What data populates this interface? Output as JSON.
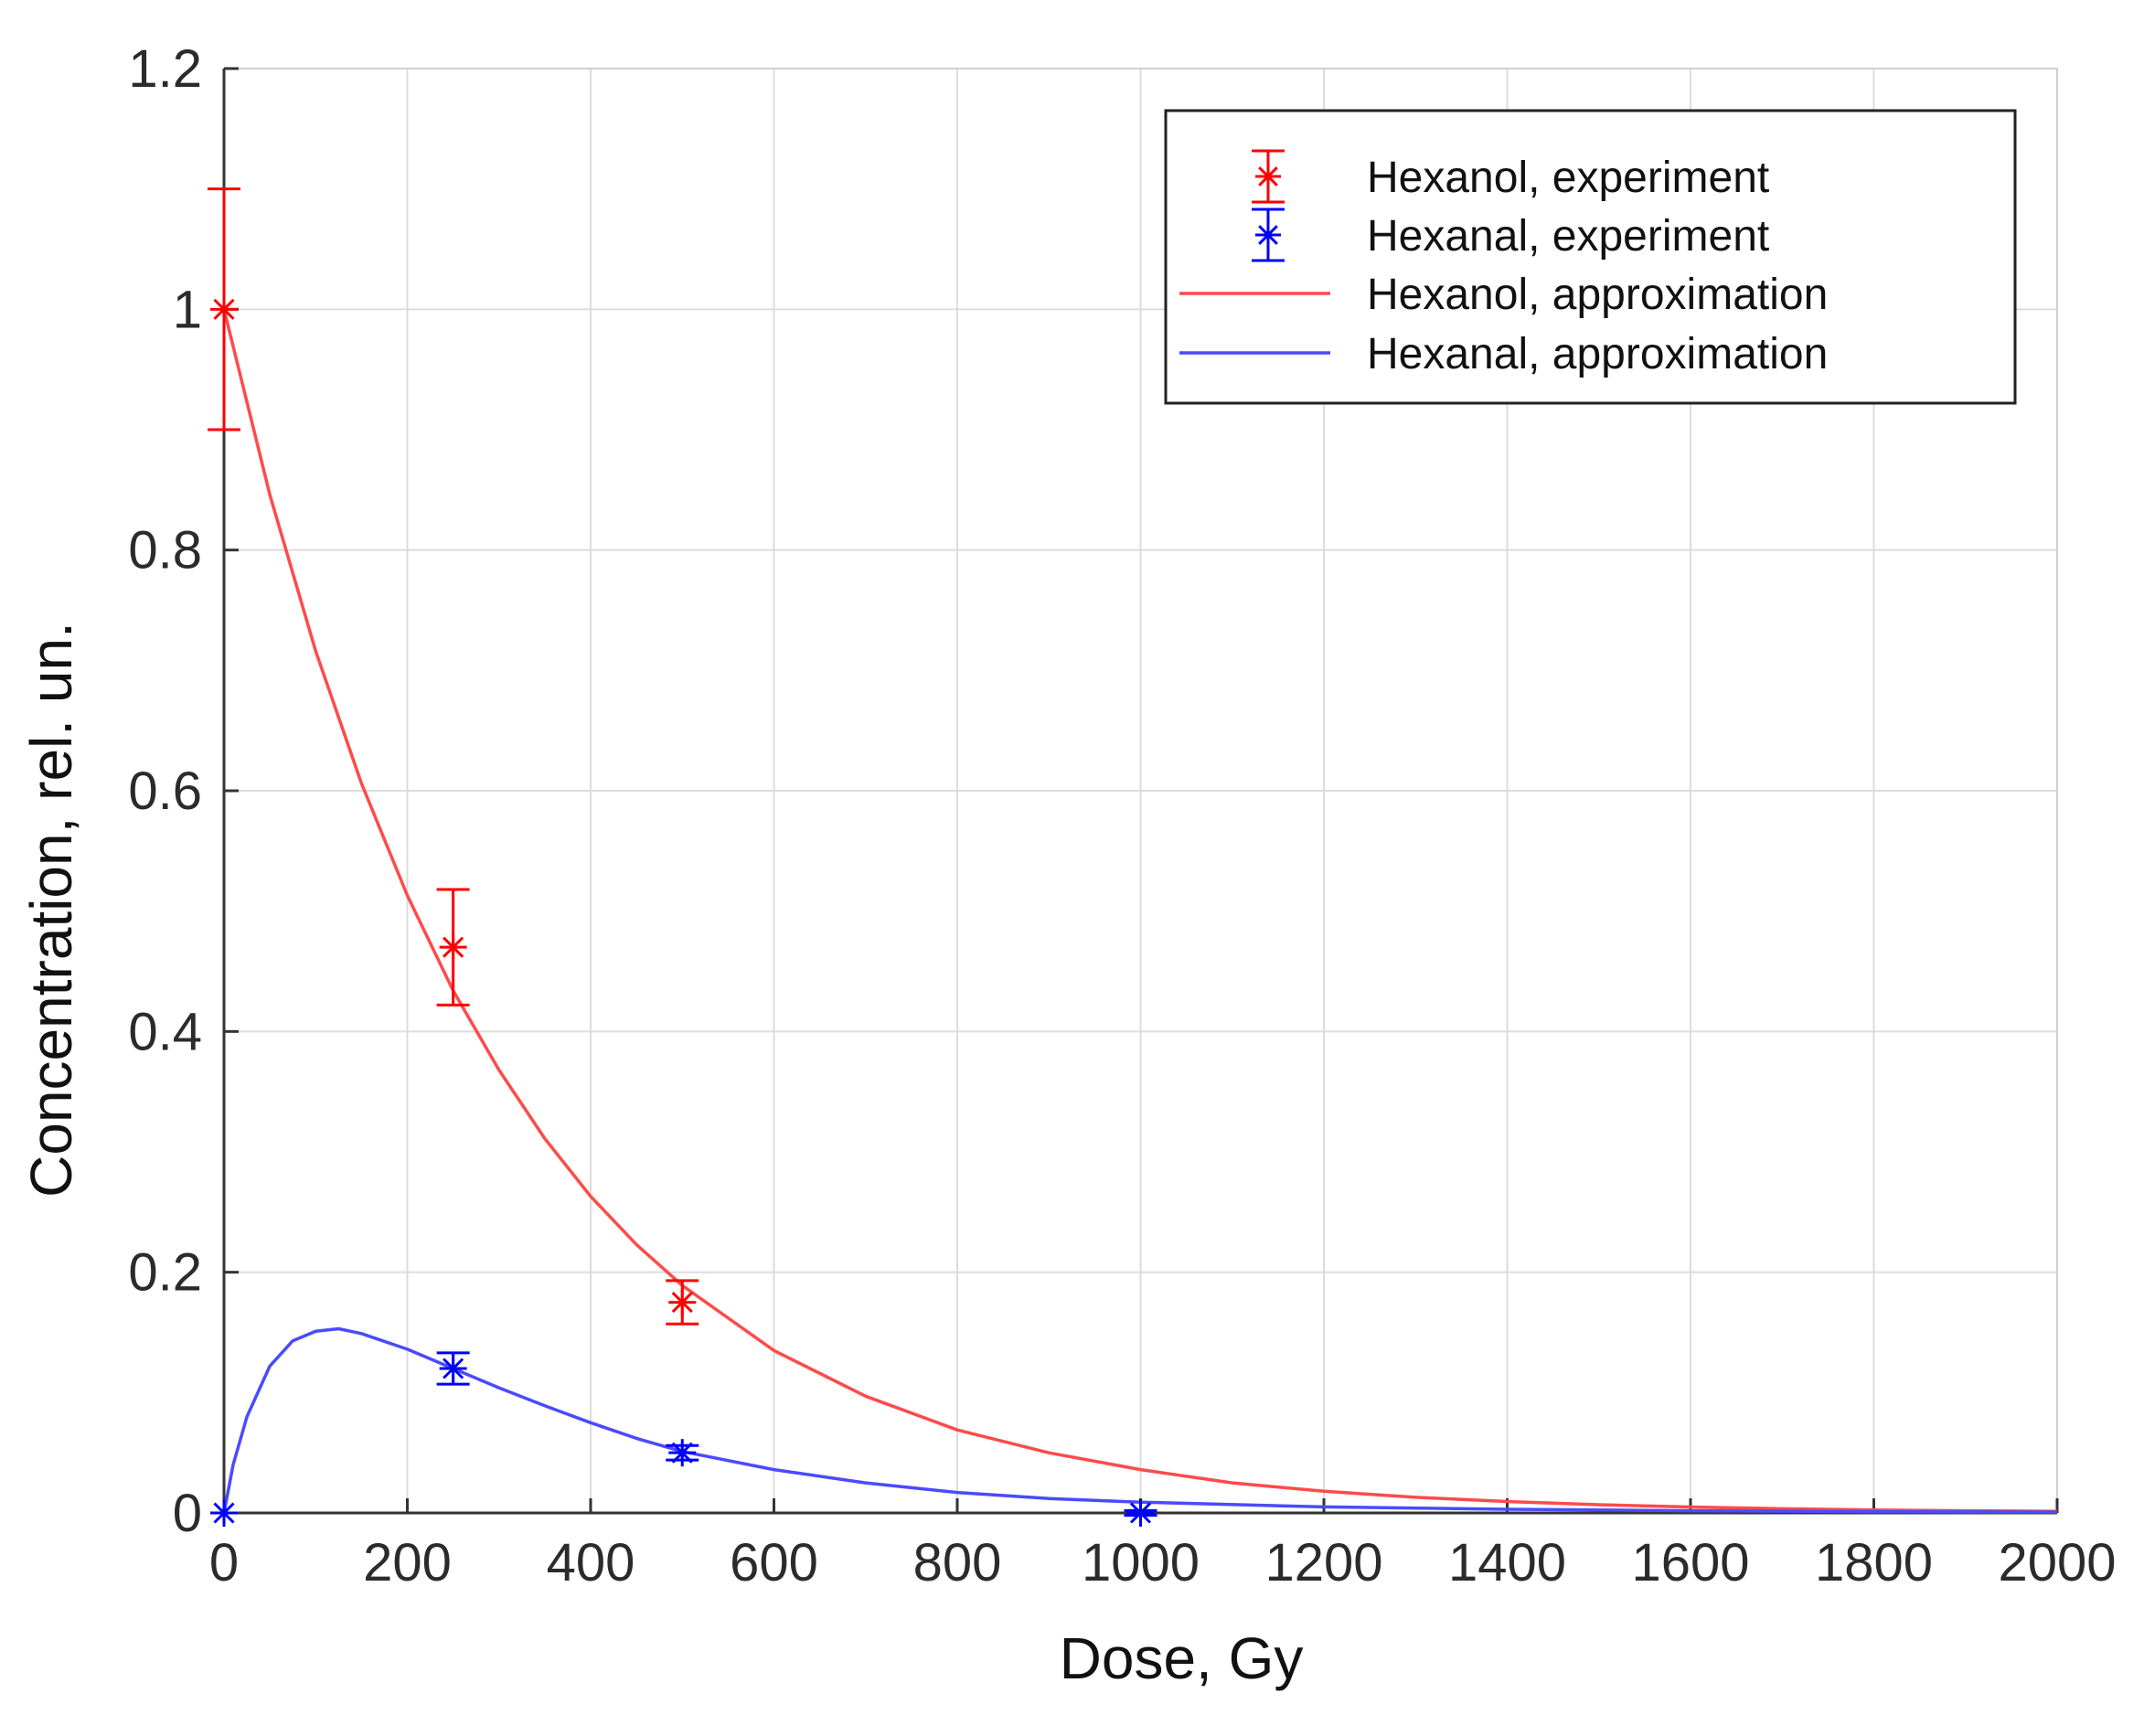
{
  "chart_data": {
    "type": "line",
    "title": "",
    "xlabel": "Dose, Gy",
    "ylabel": "Concentration, rel. un.",
    "xlim": [
      0,
      2000
    ],
    "ylim": [
      0,
      1.2
    ],
    "grid": true,
    "legend_position": "top-right",
    "x_ticks": [
      "0",
      "200",
      "400",
      "600",
      "800",
      "1000",
      "1200",
      "1400",
      "1600",
      "1800",
      "2000"
    ],
    "y_ticks": [
      "0",
      "0.2",
      "0.4",
      "0.6",
      "0.8",
      "1",
      "1.2"
    ],
    "series": [
      {
        "name": "Hexanol, experiment",
        "kind": "errorbar",
        "color": "#ff0000",
        "x": [
          0,
          250,
          500
        ],
        "y": [
          1.0,
          0.47,
          0.175
        ],
        "err": [
          0.1,
          0.048,
          0.018
        ]
      },
      {
        "name": "Hexanal, experiment",
        "kind": "errorbar",
        "color": "#0000ff",
        "x": [
          0,
          250,
          500,
          1000
        ],
        "y": [
          0.0,
          0.12,
          0.05,
          0.0
        ],
        "err": [
          0.0,
          0.013,
          0.006,
          0.002
        ]
      },
      {
        "name": "Hexanol, approximation",
        "kind": "line",
        "color": "#ff4a4a",
        "x": [
          0,
          50,
          100,
          150,
          200,
          250,
          300,
          350,
          400,
          450,
          500,
          600,
          700,
          800,
          900,
          1000,
          1100,
          1200,
          1300,
          1400,
          1500,
          1600,
          1700,
          1800,
          1900,
          2000
        ],
        "y": [
          1.0,
          0.846,
          0.716,
          0.606,
          0.513,
          0.434,
          0.368,
          0.311,
          0.263,
          0.223,
          0.189,
          0.135,
          0.097,
          0.069,
          0.05,
          0.036,
          0.025,
          0.018,
          0.013,
          0.0095,
          0.0068,
          0.0049,
          0.0035,
          0.0025,
          0.0018,
          0.0013
        ]
      },
      {
        "name": "Hexanal, approximation",
        "kind": "line",
        "color": "#4a4aff",
        "x": [
          0,
          10,
          25,
          50,
          75,
          100,
          125,
          150,
          200,
          250,
          300,
          350,
          400,
          450,
          500,
          600,
          700,
          800,
          900,
          1000,
          1200,
          1400,
          1600,
          1800,
          2000
        ],
        "y": [
          0.0,
          0.04,
          0.08,
          0.122,
          0.143,
          0.151,
          0.153,
          0.149,
          0.136,
          0.12,
          0.104,
          0.089,
          0.075,
          0.062,
          0.051,
          0.036,
          0.025,
          0.017,
          0.012,
          0.009,
          0.005,
          0.003,
          0.0018,
          0.0011,
          0.0007
        ]
      }
    ]
  }
}
